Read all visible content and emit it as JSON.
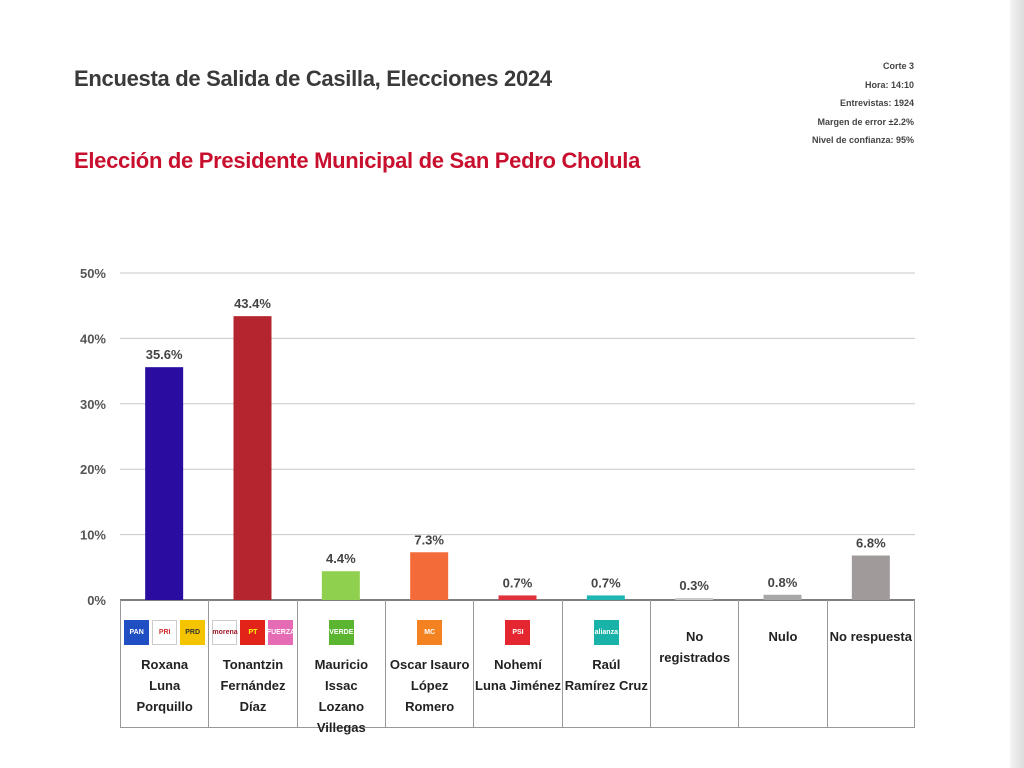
{
  "header": {
    "title": "Encuesta de Salida de Casilla, Elecciones 2024",
    "subtitle": "Elección de Presidente Municipal de San Pedro Cholula",
    "meta": [
      "Corte 3",
      "Hora: 14:10",
      "Entrevistas: 1924",
      "Margen de error ±2.2%",
      "Nivel de confianza: 95%"
    ]
  },
  "chart_data": {
    "type": "bar",
    "title": "Elección de Presidente Municipal de San Pedro Cholula",
    "categories": [
      "Roxana Luna Porquillo",
      "Tonantzin Fernández Díaz",
      "Mauricio Issac Lozano Villegas",
      "Oscar Isauro López Romero",
      "Nohemí Luna Jiménez",
      "Raúl Ramírez Cruz",
      "No registrados",
      "Nulo",
      "No respuesta"
    ],
    "category_lines": [
      [
        "Roxana",
        "Luna",
        "Porquillo"
      ],
      [
        "Tonantzin",
        "Fernández",
        "Díaz"
      ],
      [
        "Mauricio Issac",
        "Lozano",
        "Villegas"
      ],
      [
        "Oscar Isauro",
        "López",
        "Romero"
      ],
      [
        "Nohemí",
        "Luna Jiménez"
      ],
      [
        "Raúl",
        "Ramírez Cruz"
      ],
      [
        "No registrados"
      ],
      [
        "Nulo"
      ],
      [
        "No respuesta"
      ]
    ],
    "values": [
      35.6,
      43.4,
      4.4,
      7.3,
      0.7,
      0.7,
      0.3,
      0.8,
      6.8
    ],
    "data_labels": [
      "35.6%",
      "43.4%",
      "4.4%",
      "7.3%",
      "0.7%",
      "0.7%",
      "0.3%",
      "0.8%",
      "6.8%"
    ],
    "colors": [
      "#2a0ca0",
      "#b5252f",
      "#8fd14f",
      "#f26b38",
      "#e0323c",
      "#1fb5b0",
      "#c8c8c8",
      "#a8a8a8",
      "#a09a9a"
    ],
    "ylim": [
      0,
      50
    ],
    "yticks": [
      "0%",
      "10%",
      "20%",
      "30%",
      "40%",
      "50%"
    ],
    "grid": true,
    "logos": [
      [
        {
          "name": "pan",
          "text": "PAN",
          "bg": "#1f4fc2",
          "fg": "#ffffff"
        },
        {
          "name": "pri",
          "text": "PRI",
          "bg": "#ffffff",
          "fg": "#d32f2f"
        },
        {
          "name": "prd",
          "text": "PRD",
          "bg": "#f5c400",
          "fg": "#333333"
        }
      ],
      [
        {
          "name": "morena",
          "text": "morena",
          "bg": "#ffffff",
          "fg": "#a01c2c"
        },
        {
          "name": "pt",
          "text": "PT",
          "bg": "#e2231a",
          "fg": "#ffff00"
        },
        {
          "name": "fuerza-por-mexico",
          "text": "FUERZA",
          "bg": "#e66bb5",
          "fg": "#ffffff"
        }
      ],
      [
        {
          "name": "verde",
          "text": "VERDE",
          "bg": "#5cb531",
          "fg": "#ffffff"
        }
      ],
      [
        {
          "name": "movimiento-ciudadano",
          "text": "MC",
          "bg": "#f58220",
          "fg": "#ffffff"
        }
      ],
      [
        {
          "name": "psi",
          "text": "PSI",
          "bg": "#e3262f",
          "fg": "#ffffff"
        }
      ],
      [
        {
          "name": "alianza",
          "text": "alianza",
          "bg": "#19b2a8",
          "fg": "#ffffff"
        }
      ],
      [],
      [],
      []
    ]
  }
}
